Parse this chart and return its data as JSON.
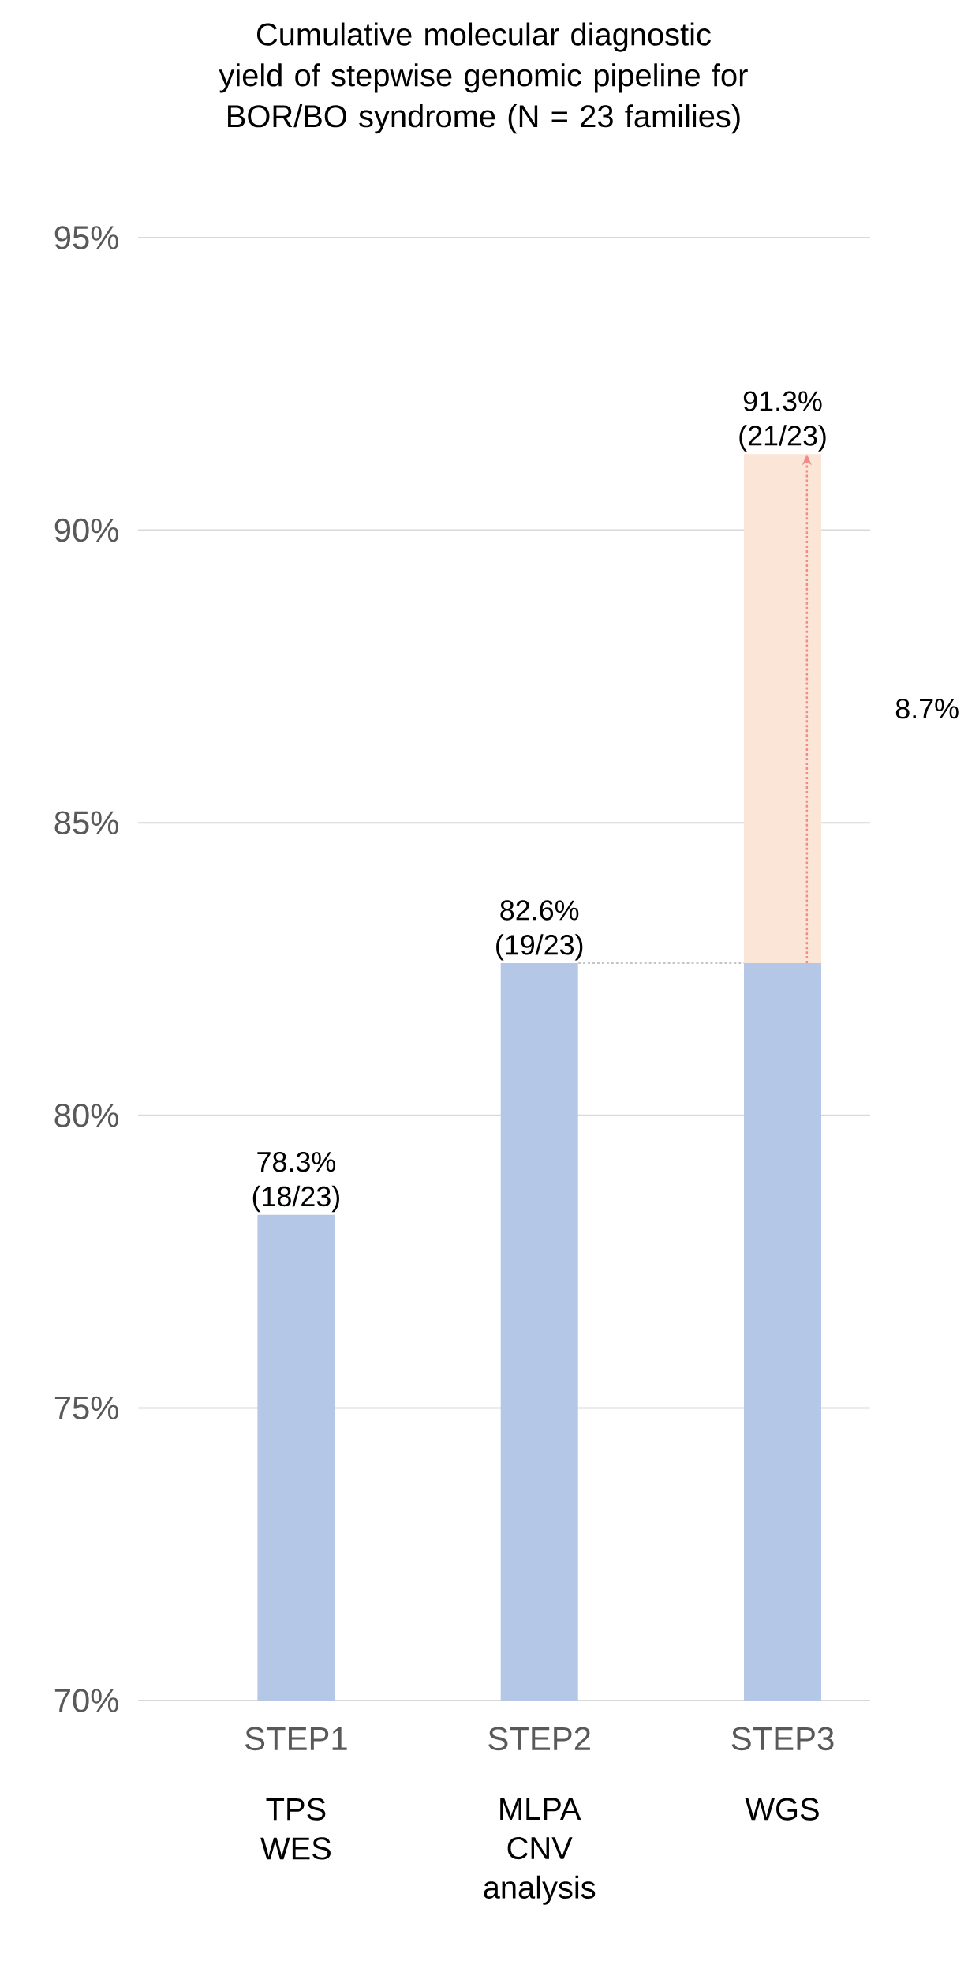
{
  "chart_data": {
    "type": "bar",
    "title": "Cumulative molecular diagnostic yield of stepwise genomic pipeline for BOR/BO syndrome (N = 23 families)",
    "categories": [
      "STEP1",
      "STEP2",
      "STEP3"
    ],
    "series": [
      {
        "color": "#b4c7e7",
        "values": [
          78.3,
          82.6,
          82.6
        ]
      },
      {
        "color": "#fbe5d6",
        "values": [
          null,
          null,
          8.7
        ],
        "base": [
          null,
          null,
          82.6
        ]
      }
    ],
    "totals": [
      "78.3% (18/23)",
      "82.6% (19/23)",
      "91.3% (21/23)"
    ],
    "annotations": [
      "TPS WES",
      "MLPA CNV analysis",
      "WGS",
      "8.7%"
    ],
    "ylim": [
      70,
      95
    ],
    "yticks": [
      {
        "value": 70,
        "label": "70%"
      },
      {
        "value": 75,
        "label": "75%"
      },
      {
        "value": 80,
        "label": "80%"
      },
      {
        "value": 85,
        "label": "85%"
      },
      {
        "value": 90,
        "label": "90%"
      },
      {
        "value": 95,
        "label": "95%"
      }
    ],
    "grid": "y"
  }
}
